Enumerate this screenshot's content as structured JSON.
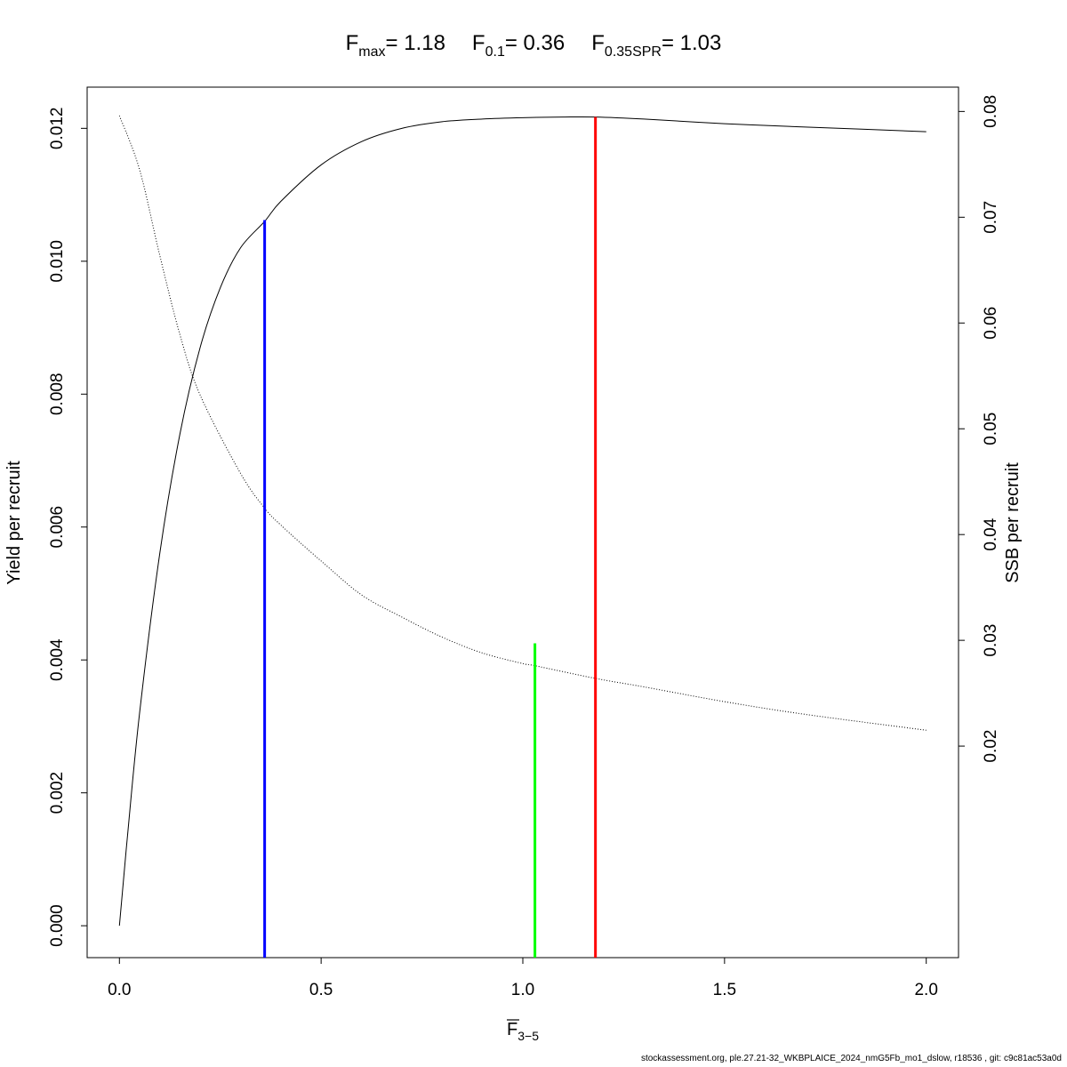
{
  "title": {
    "fmax": {
      "base": "F",
      "sub": "max",
      "value": "= 1.18"
    },
    "f01": {
      "base": "F",
      "sub": "0.1",
      "value": "= 0.36"
    },
    "fspr": {
      "base": "F",
      "sub": "0.35SPR",
      "value": "= 1.03"
    }
  },
  "footer": "stockassessment.org, ple.27.21-32_WKBPLAICE_2024_nmG5Fb_mo1_dslow, r18536 , git: c9c81ac53a0d",
  "chart_data": {
    "type": "line",
    "xlabel": {
      "base": "F",
      "sub": "3−5"
    },
    "ylabel": "Yield per recruit",
    "y2label": "SSB per recruit",
    "xlim": [
      -0.08,
      2.08
    ],
    "ylim": [
      -0.00048,
      0.01262
    ],
    "y2lim": [
      0.0,
      0.0823
    ],
    "x_ticks": [
      "0.0",
      "0.5",
      "1.0",
      "1.5",
      "2.0"
    ],
    "y_ticks": [
      "0.000",
      "0.002",
      "0.004",
      "0.006",
      "0.008",
      "0.010",
      "0.012"
    ],
    "y2_ticks": [
      "0.02",
      "0.03",
      "0.04",
      "0.05",
      "0.06",
      "0.07",
      "0.08"
    ],
    "grid": false,
    "series": [
      {
        "axis": "left",
        "style": "solid",
        "color": "#000000",
        "x": [
          0.0,
          0.02,
          0.05,
          0.1,
          0.15,
          0.2,
          0.25,
          0.3,
          0.36,
          0.4,
          0.5,
          0.6,
          0.7,
          0.8,
          0.9,
          1.0,
          1.1,
          1.18,
          1.3,
          1.5,
          1.7,
          2.0
        ],
        "y": [
          0.0,
          0.00135,
          0.0032,
          0.0056,
          0.0074,
          0.0087,
          0.0096,
          0.0102,
          0.0106,
          0.0109,
          0.01145,
          0.0118,
          0.012,
          0.0121,
          0.01214,
          0.01216,
          0.01217,
          0.01217,
          0.01214,
          0.01207,
          0.01202,
          0.01195
        ]
      },
      {
        "axis": "right",
        "style": "dotted",
        "color": "#000000",
        "x": [
          0.0,
          0.05,
          0.1,
          0.15,
          0.2,
          0.3,
          0.36,
          0.4,
          0.5,
          0.6,
          0.7,
          0.8,
          0.9,
          1.0,
          1.03,
          1.18,
          1.3,
          1.5,
          1.7,
          2.0
        ],
        "y": [
          0.0796,
          0.0745,
          0.0664,
          0.0589,
          0.0532,
          0.0458,
          0.0425,
          0.0409,
          0.0375,
          0.0343,
          0.0322,
          0.0303,
          0.0288,
          0.0278,
          0.0276,
          0.0264,
          0.0256,
          0.0242,
          0.023,
          0.0215
        ]
      }
    ],
    "reference_lines": [
      {
        "name": "F0.1",
        "x": 0.36,
        "y_top": 0.01062,
        "axis": "left",
        "color": "#0000ff"
      },
      {
        "name": "F0.35SPR",
        "x": 1.03,
        "y_top": 0.00425,
        "axis": "left",
        "color": "#00ff00"
      },
      {
        "name": "Fmax",
        "x": 1.18,
        "y_top": 0.01217,
        "axis": "left",
        "color": "#ff0000"
      }
    ]
  }
}
